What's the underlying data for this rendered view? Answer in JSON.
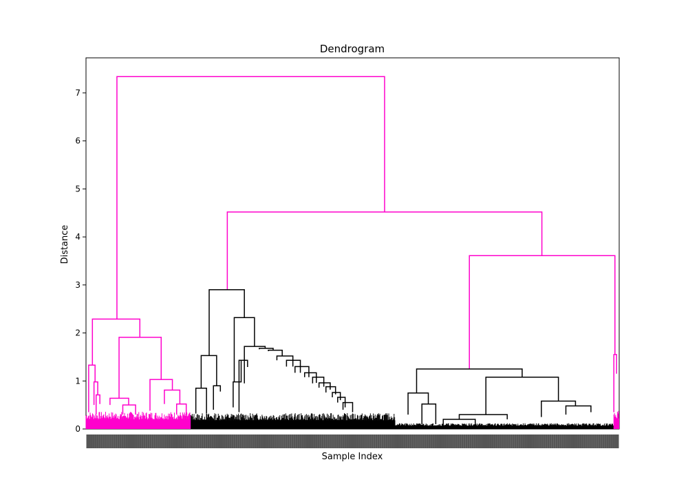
{
  "chart_data": {
    "type": "dendrogram",
    "title": "Dendrogram",
    "xlabel": "Sample Index",
    "ylabel": "Distance",
    "ylim": [
      0,
      7.73
    ],
    "yticks": [
      0,
      1,
      2,
      3,
      4,
      5,
      6,
      7
    ],
    "grid": false,
    "colors": {
      "cluster": "#ff00cc",
      "above_threshold": "#000000"
    },
    "merges": [
      {
        "name": "root",
        "height": 7.34,
        "left": 0.058,
        "right": 0.56,
        "left_h": 2.29,
        "right_h": 4.52,
        "color": "#ff00cc"
      },
      {
        "name": "cluster-a",
        "height": 2.29,
        "left": 0.012,
        "right": 0.101,
        "left_h": 1.33,
        "right_h": 1.91,
        "color": "#ff00cc"
      },
      {
        "name": "cluster-a1",
        "height": 1.33,
        "left": 0.005,
        "right": 0.017,
        "left_h": 0.35,
        "right_h": 0.98,
        "color": "#ff00cc"
      },
      {
        "name": "cluster-a1b",
        "height": 0.98,
        "left": 0.015,
        "right": 0.022,
        "left_h": 0.5,
        "right_h": 0.71,
        "color": "#ff00cc"
      },
      {
        "name": "cluster-a1c",
        "height": 0.71,
        "left": 0.019,
        "right": 0.026,
        "left_h": 0.3,
        "right_h": 0.52,
        "color": "#ff00cc"
      },
      {
        "name": "cluster-a2",
        "height": 1.91,
        "left": 0.062,
        "right": 0.141,
        "left_h": 0.64,
        "right_h": 1.03,
        "color": "#ff00cc"
      },
      {
        "name": "cluster-a2a",
        "height": 0.64,
        "left": 0.045,
        "right": 0.08,
        "left_h": 0.5,
        "right_h": 0.5,
        "color": "#ff00cc"
      },
      {
        "name": "cluster-a2b",
        "height": 1.03,
        "left": 0.12,
        "right": 0.162,
        "left_h": 0.38,
        "right_h": 0.81,
        "color": "#ff00cc"
      },
      {
        "name": "cluster-a2c",
        "height": 0.81,
        "left": 0.147,
        "right": 0.176,
        "left_h": 0.52,
        "right_h": 0.52,
        "color": "#ff00cc"
      },
      {
        "name": "cluster-a2d",
        "height": 0.52,
        "left": 0.17,
        "right": 0.188,
        "left_h": 0.3,
        "right_h": 0.3,
        "color": "#ff00cc"
      },
      {
        "name": "cluster-a2e",
        "height": 0.5,
        "left": 0.069,
        "right": 0.093,
        "left_h": 0.3,
        "right_h": 0.3,
        "color": "#ff00cc"
      },
      {
        "name": "node-bc",
        "height": 4.52,
        "left": 0.265,
        "right": 0.855,
        "left_h": 2.9,
        "right_h": 3.61,
        "color": "#ff00cc"
      },
      {
        "name": "node-b",
        "height": 2.9,
        "left": 0.231,
        "right": 0.297,
        "left_h": 1.53,
        "right_h": 2.32,
        "color": "#000000"
      },
      {
        "name": "node-b1",
        "height": 1.53,
        "left": 0.216,
        "right": 0.245,
        "left_h": 0.85,
        "right_h": 0.9,
        "color": "#000000"
      },
      {
        "name": "node-b1a",
        "height": 0.85,
        "left": 0.206,
        "right": 0.226,
        "left_h": 0.32,
        "right_h": 0.32,
        "color": "#000000"
      },
      {
        "name": "node-b1b",
        "height": 0.9,
        "left": 0.239,
        "right": 0.252,
        "left_h": 0.4,
        "right_h": 0.78,
        "color": "#000000"
      },
      {
        "name": "node-b2",
        "height": 2.32,
        "left": 0.278,
        "right": 0.316,
        "left_h": 0.98,
        "right_h": 1.72,
        "color": "#000000"
      },
      {
        "name": "node-b2a",
        "height": 0.98,
        "left": 0.276,
        "right": 0.291,
        "left_h": 0.45,
        "right_h": 1.43,
        "color": "#000000"
      },
      {
        "name": "node-b2b",
        "height": 1.43,
        "left": 0.287,
        "right": 0.303,
        "left_h": 0.35,
        "right_h": 1.29,
        "color": "#000000"
      },
      {
        "name": "node-b2c",
        "height": 1.72,
        "left": 0.297,
        "right": 0.336,
        "left_h": 0.95,
        "right_h": 1.68,
        "color": "#000000"
      },
      {
        "name": "node-b2d",
        "height": 1.68,
        "left": 0.325,
        "right": 0.351,
        "left_h": 1.66,
        "right_h": 1.64,
        "color": "#000000"
      },
      {
        "name": "node-b2e",
        "height": 1.64,
        "left": 0.342,
        "right": 0.368,
        "left_h": 1.62,
        "right_h": 1.52,
        "color": "#000000"
      },
      {
        "name": "node-b2f",
        "height": 1.52,
        "left": 0.358,
        "right": 0.388,
        "left_h": 1.43,
        "right_h": 1.3,
        "color": "#000000"
      },
      {
        "name": "node-b2g",
        "height": 1.43,
        "left": 0.376,
        "right": 0.402,
        "left_h": 1.3,
        "right_h": 1.17,
        "color": "#000000"
      },
      {
        "name": "node-b2h",
        "height": 1.3,
        "left": 0.392,
        "right": 0.418,
        "left_h": 1.17,
        "right_h": 1.08,
        "color": "#000000"
      },
      {
        "name": "node-b2i",
        "height": 1.17,
        "left": 0.41,
        "right": 0.432,
        "left_h": 1.08,
        "right_h": 0.96,
        "color": "#000000"
      },
      {
        "name": "node-b2j",
        "height": 1.08,
        "left": 0.425,
        "right": 0.446,
        "left_h": 0.95,
        "right_h": 0.88,
        "color": "#000000"
      },
      {
        "name": "node-b2k",
        "height": 0.96,
        "left": 0.437,
        "right": 0.458,
        "left_h": 0.86,
        "right_h": 0.82,
        "color": "#000000"
      },
      {
        "name": "node-b2l",
        "height": 0.88,
        "left": 0.45,
        "right": 0.468,
        "left_h": 0.76,
        "right_h": 0.72,
        "color": "#000000"
      },
      {
        "name": "node-b2m",
        "height": 0.76,
        "left": 0.462,
        "right": 0.477,
        "left_h": 0.66,
        "right_h": 0.6,
        "color": "#000000"
      },
      {
        "name": "node-b2n",
        "height": 0.66,
        "left": 0.472,
        "right": 0.486,
        "left_h": 0.55,
        "right_h": 0.45,
        "color": "#000000"
      },
      {
        "name": "node-b2o",
        "height": 0.55,
        "left": 0.482,
        "right": 0.5,
        "left_h": 0.4,
        "right_h": 0.35,
        "color": "#000000"
      },
      {
        "name": "node-c",
        "height": 3.61,
        "left": 0.719,
        "right": 0.992,
        "left_h": 1.25,
        "right_h": 1.55,
        "color": "#ff00cc"
      },
      {
        "name": "node-c1",
        "height": 1.25,
        "left": 0.62,
        "right": 0.818,
        "left_h": 0.75,
        "right_h": 1.08,
        "color": "#000000"
      },
      {
        "name": "node-c1a",
        "height": 0.75,
        "left": 0.604,
        "right": 0.642,
        "left_h": 0.3,
        "right_h": 0.52,
        "color": "#000000"
      },
      {
        "name": "node-c1a2",
        "height": 0.52,
        "left": 0.63,
        "right": 0.656,
        "left_h": 0.1,
        "right_h": 0.1,
        "color": "#000000"
      },
      {
        "name": "node-c1b",
        "height": 1.08,
        "left": 0.75,
        "right": 0.886,
        "left_h": 0.3,
        "right_h": 0.58,
        "color": "#000000"
      },
      {
        "name": "node-c1b2",
        "height": 0.58,
        "left": 0.854,
        "right": 0.918,
        "left_h": 0.25,
        "right_h": 0.48,
        "color": "#000000"
      },
      {
        "name": "node-c1b3",
        "height": 0.48,
        "left": 0.9,
        "right": 0.947,
        "left_h": 0.3,
        "right_h": 0.35,
        "color": "#000000"
      },
      {
        "name": "node-c1b4",
        "height": 0.3,
        "left": 0.7,
        "right": 0.79,
        "left_h": 0.2,
        "right_h": 0.2,
        "color": "#000000"
      },
      {
        "name": "node-c1b5",
        "height": 0.2,
        "left": 0.67,
        "right": 0.73,
        "left_h": 0.05,
        "right_h": 0.05,
        "color": "#000000"
      },
      {
        "name": "node-c2",
        "height": 1.55,
        "left": 0.99,
        "right": 0.995,
        "left_h": 0.35,
        "right_h": 1.15,
        "color": "#ff00cc"
      }
    ]
  }
}
